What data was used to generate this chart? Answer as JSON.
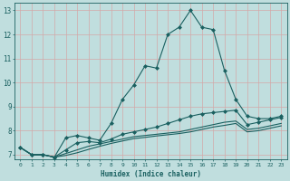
{
  "xlabel": "Humidex (Indice chaleur)",
  "bg_color": "#c0dede",
  "grid_color": "#d4a8a8",
  "line_color": "#1a6060",
  "xlim_min": -0.5,
  "xlim_max": 23.5,
  "ylim": [
    6.8,
    13.3
  ],
  "yticks": [
    7,
    8,
    9,
    10,
    11,
    12,
    13
  ],
  "xticks": [
    0,
    1,
    2,
    3,
    4,
    5,
    6,
    7,
    8,
    9,
    10,
    11,
    12,
    13,
    14,
    15,
    16,
    17,
    18,
    19,
    20,
    21,
    22,
    23
  ],
  "lines": [
    {
      "x": [
        0,
        1,
        2,
        3,
        4,
        5,
        6,
        7,
        8,
        9,
        10,
        11,
        12,
        13,
        14,
        15,
        16,
        17,
        18,
        19,
        20,
        21,
        22,
        23
      ],
      "y": [
        7.3,
        7.0,
        7.0,
        6.9,
        7.7,
        7.8,
        7.7,
        7.6,
        8.3,
        9.3,
        9.9,
        10.7,
        10.6,
        12.0,
        12.3,
        13.0,
        12.3,
        12.2,
        10.5,
        9.3,
        8.6,
        8.5,
        8.5,
        8.6
      ],
      "marker": "D",
      "markersize": 2.0,
      "linewidth": 0.8
    },
    {
      "x": [
        0,
        1,
        2,
        3,
        4,
        5,
        6,
        7,
        8,
        9,
        10,
        11,
        12,
        13,
        14,
        15,
        16,
        17,
        18,
        19,
        20,
        21,
        22,
        23
      ],
      "y": [
        7.3,
        7.0,
        7.0,
        6.9,
        7.2,
        7.5,
        7.55,
        7.5,
        7.65,
        7.85,
        7.95,
        8.05,
        8.15,
        8.3,
        8.45,
        8.6,
        8.7,
        8.75,
        8.8,
        8.85,
        8.25,
        8.35,
        8.45,
        8.55
      ],
      "marker": "D",
      "markersize": 2.0,
      "linewidth": 0.8
    },
    {
      "x": [
        0,
        1,
        2,
        3,
        4,
        5,
        6,
        7,
        8,
        9,
        10,
        11,
        12,
        13,
        14,
        15,
        16,
        17,
        18,
        19,
        20,
        21,
        22,
        23
      ],
      "y": [
        7.3,
        7.0,
        7.0,
        6.9,
        7.05,
        7.2,
        7.35,
        7.45,
        7.55,
        7.65,
        7.75,
        7.8,
        7.85,
        7.9,
        7.95,
        8.05,
        8.15,
        8.25,
        8.35,
        8.4,
        8.05,
        8.1,
        8.2,
        8.3
      ],
      "marker": null,
      "markersize": 0,
      "linewidth": 0.8
    },
    {
      "x": [
        0,
        1,
        2,
        3,
        4,
        5,
        6,
        7,
        8,
        9,
        10,
        11,
        12,
        13,
        14,
        15,
        16,
        17,
        18,
        19,
        20,
        21,
        22,
        23
      ],
      "y": [
        7.3,
        7.0,
        7.0,
        6.9,
        6.97,
        7.08,
        7.22,
        7.35,
        7.47,
        7.57,
        7.67,
        7.72,
        7.78,
        7.83,
        7.88,
        7.95,
        8.05,
        8.15,
        8.22,
        8.3,
        7.95,
        8.0,
        8.1,
        8.2
      ],
      "marker": null,
      "markersize": 0,
      "linewidth": 0.8
    }
  ]
}
